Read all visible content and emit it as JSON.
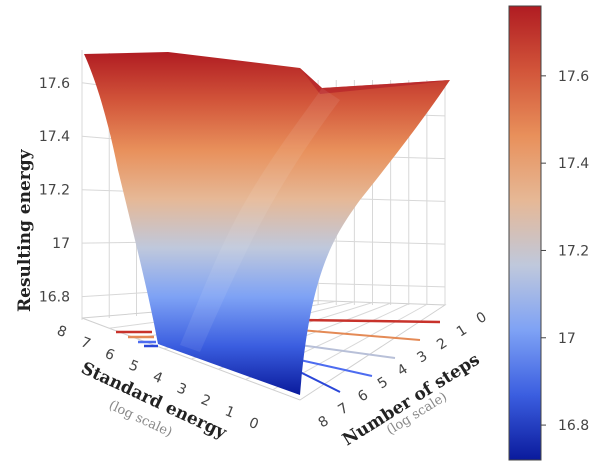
{
  "chart_data": {
    "type": "surface",
    "z_axis": {
      "label": "Resulting energy",
      "ticks": [
        16.8,
        17,
        17.2,
        17.4,
        17.6
      ],
      "range": [
        16.72,
        17.76
      ]
    },
    "x_axis": {
      "label": "Standard energy",
      "sublabel": "(log scale)",
      "ticks": [
        8,
        7,
        6,
        5,
        4,
        3,
        2,
        1,
        0
      ],
      "range": [
        8,
        0
      ]
    },
    "y_axis": {
      "label": "Number of steps",
      "sublabel": "(log scale)",
      "ticks": [
        8,
        7,
        6,
        5,
        4,
        3,
        2,
        1,
        0
      ],
      "range": [
        8,
        0
      ]
    },
    "colorbar": {
      "ticks": [
        16.8,
        17,
        17.2,
        17.4,
        17.6
      ],
      "range": [
        16.72,
        17.76
      ],
      "colorscale": [
        "#0a1a9c",
        "#3b5ee0",
        "#7ea2f5",
        "#bfc8dc",
        "#e6b896",
        "#e8905b",
        "#d2553a",
        "#b01c22"
      ]
    },
    "surface": {
      "corners": [
        {
          "standard_energy": 0,
          "steps": 0,
          "value": 17.74
        },
        {
          "standard_energy": 8,
          "steps": 0,
          "value": 17.74
        },
        {
          "standard_energy": 0,
          "steps": 8,
          "value": 16.75
        },
        {
          "standard_energy": 8,
          "steps": 8,
          "value": 16.75
        }
      ],
      "ridge_value": 17.7
    },
    "grid": true
  }
}
